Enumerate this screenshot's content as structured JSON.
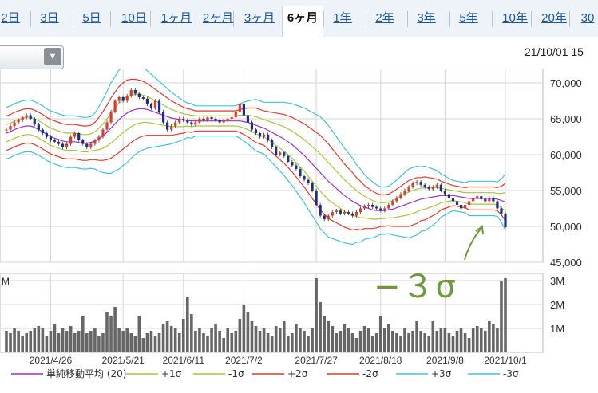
{
  "tabs": [
    {
      "label": "2日",
      "active": false
    },
    {
      "label": "3日",
      "active": false
    },
    {
      "label": "5日",
      "active": false
    },
    {
      "label": "10日",
      "active": false
    },
    {
      "label": "1ヶ月",
      "active": false
    },
    {
      "label": "2ヶ月",
      "active": false
    },
    {
      "label": "3ヶ月",
      "active": false
    },
    {
      "label": "6ヶ月",
      "active": true
    },
    {
      "label": "1年",
      "active": false
    },
    {
      "label": "2年",
      "active": false
    },
    {
      "label": "3年",
      "active": false
    },
    {
      "label": "5年",
      "active": false
    },
    {
      "label": "10年",
      "active": false
    },
    {
      "label": "20年",
      "active": false
    },
    {
      "label": "30",
      "active": false
    }
  ],
  "datetime": "21/10/01 15",
  "annotation": "−３σ",
  "colors": {
    "ma": "#9b30c8",
    "p1": "#a9c43c",
    "m1": "#a9c43c",
    "p2": "#e03a2a",
    "m2": "#e03a2a",
    "p3": "#42c3d8",
    "m3": "#42c3d8",
    "up": "#e03a2a",
    "down": "#1c2e8a",
    "volume": "#666666",
    "annotation": "#6e9b3a"
  },
  "chart_data": {
    "type": "line",
    "price_axis": {
      "ylim": [
        45000,
        72000
      ],
      "ticks": [
        "45,000",
        "50,000",
        "55,000",
        "60,000",
        "65,000",
        "70,000"
      ]
    },
    "volume_axis": {
      "ylim": [
        0,
        3300000
      ],
      "ticks": [
        "1M",
        "2M",
        "3M"
      ],
      "corner_label": "M"
    },
    "x_labels": [
      "2021/4/26",
      "2021/5/21",
      "2021/6/11",
      "2021/7/2",
      "2021/7/27",
      "2021/8/18",
      "2021/9/8",
      "2021/10/1"
    ],
    "x_label_index": [
      11,
      29,
      44,
      59,
      77,
      93,
      109,
      124
    ],
    "legend": [
      {
        "label": "単純移動平均 (20)",
        "key": "ma"
      },
      {
        "label": "+1σ",
        "key": "p1"
      },
      {
        "label": "-1σ",
        "key": "m1"
      },
      {
        "label": "+2σ",
        "key": "p2"
      },
      {
        "label": "-2σ",
        "key": "m2"
      },
      {
        "label": "+3σ",
        "key": "p3"
      },
      {
        "label": "-3σ",
        "key": "m3"
      }
    ],
    "close": [
      63500,
      64000,
      64500,
      64800,
      65200,
      65500,
      65000,
      64200,
      63500,
      63000,
      62500,
      62000,
      61800,
      61500,
      61000,
      61500,
      62500,
      63000,
      62000,
      61500,
      61000,
      61500,
      62000,
      62500,
      63500,
      64500,
      66000,
      67500,
      68000,
      67500,
      68200,
      69000,
      68500,
      68000,
      67800,
      67000,
      66500,
      67500,
      66000,
      64500,
      63500,
      64000,
      64500,
      65000,
      64800,
      64500,
      64200,
      64500,
      65000,
      64800,
      65200,
      65000,
      64800,
      64500,
      64800,
      65000,
      65200,
      66000,
      67000,
      65500,
      64500,
      63500,
      63000,
      62500,
      62800,
      62000,
      61000,
      60000,
      60300,
      59800,
      59000,
      58500,
      58000,
      57000,
      56500,
      56000,
      55000,
      53000,
      51500,
      51000,
      51500,
      52000,
      52200,
      51800,
      52000,
      51800,
      51500,
      52000,
      52500,
      52800,
      53000,
      52700,
      52500,
      52200,
      52500,
      53000,
      53500,
      54000,
      54500,
      55000,
      55500,
      56000,
      56200,
      55800,
      55500,
      55200,
      55500,
      55800,
      55000,
      54500,
      54000,
      53500,
      53000,
      52500,
      53000,
      53500,
      54000,
      54200,
      53800,
      53500,
      54000,
      53500,
      52500,
      51800,
      49900
    ],
    "volume": [
      0.9,
      0.8,
      1.0,
      0.9,
      0.7,
      0.8,
      0.9,
      1.0,
      1.1,
      1.0,
      0.7,
      0.9,
      1.2,
      0.8,
      1.0,
      0.9,
      1.1,
      0.8,
      0.9,
      1.5,
      0.8,
      0.9,
      1.0,
      0.7,
      0.8,
      1.7,
      1.5,
      1.9,
      1.0,
      0.9,
      1.0,
      0.8,
      0.7,
      1.5,
      0.6,
      0.8,
      0.9,
      0.7,
      0.8,
      1.2,
      1.3,
      1.1,
      1.0,
      0.8,
      1.4,
      2.3,
      1.6,
      0.9,
      1.0,
      0.8,
      0.7,
      1.0,
      1.2,
      0.9,
      0.6,
      1.0,
      0.8,
      0.9,
      1.4,
      2.0,
      1.7,
      1.3,
      1.1,
      0.9,
      1.0,
      0.8,
      0.7,
      1.1,
      1.0,
      1.3,
      0.7,
      0.8,
      1.2,
      1.0,
      0.9,
      0.7,
      1.0,
      3.1,
      2.1,
      1.5,
      1.3,
      1.1,
      0.8,
      0.9,
      1.2,
      1.0,
      0.8,
      0.6,
      0.9,
      1.1,
      1.0,
      0.7,
      0.8,
      1.5,
      1.0,
      1.2,
      0.9,
      0.8,
      0.7,
      1.0,
      0.8,
      0.9,
      1.3,
      0.9,
      0.8,
      0.7,
      1.3,
      0.9,
      1.0,
      1.0,
      0.8,
      0.7,
      0.9,
      1.0,
      0.8,
      0.6,
      1.0,
      1.1,
      1.0,
      0.9,
      1.3,
      1.2,
      1.0,
      3.0,
      3.1
    ],
    "bands": {
      "ma": [
        63000,
        63200,
        63500,
        63700,
        63900,
        64000,
        64000,
        63800,
        63500,
        63200,
        62800,
        62500,
        62300,
        62100,
        61900,
        61800,
        61800,
        61800,
        61700,
        61600,
        61600,
        61700,
        61900,
        62200,
        62600,
        63100,
        63700,
        64300,
        64900,
        65400,
        65800,
        66100,
        66300,
        66400,
        66400,
        66300,
        66100,
        65900,
        65700,
        65500,
        65300,
        65100,
        65000,
        64900,
        64800,
        64800,
        64700,
        64700,
        64700,
        64700,
        64700,
        64700,
        64700,
        64700,
        64700,
        64700,
        64700,
        64700,
        64700,
        64600,
        64500,
        64300,
        64100,
        63900,
        63700,
        63400,
        63100,
        62800,
        62500,
        62200,
        61800,
        61400,
        60900,
        60400,
        59900,
        59300,
        58700,
        58100,
        57500,
        56900,
        56300,
        55800,
        55300,
        54800,
        54300,
        53900,
        53500,
        53200,
        52900,
        52700,
        52500,
        52300,
        52200,
        52200,
        52200,
        52300,
        52400,
        52600,
        52800,
        53000,
        53200,
        53400,
        53600,
        53800,
        53900,
        54000,
        54100,
        54200,
        54300,
        54300,
        54300,
        54300,
        54200,
        54100,
        54000,
        53900,
        53900,
        53900,
        53900,
        53900,
        53900,
        53900,
        53800,
        53600,
        53400
      ],
      "p1": [
        64200,
        64400,
        64700,
        64900,
        65100,
        65200,
        65200,
        65000,
        64700,
        64400,
        64000,
        63700,
        63500,
        63300,
        63100,
        63000,
        63000,
        63000,
        62900,
        62800,
        62800,
        62900,
        63200,
        63700,
        64300,
        65000,
        65800,
        66500,
        67200,
        67700,
        68100,
        68300,
        68400,
        68400,
        68300,
        68100,
        67800,
        67500,
        67200,
        66900,
        66600,
        66300,
        66100,
        65900,
        65700,
        65600,
        65500,
        65400,
        65400,
        65400,
        65400,
        65400,
        65400,
        65400,
        65400,
        65400,
        65400,
        65400,
        65500,
        65500,
        65500,
        65400,
        65300,
        65100,
        64900,
        64700,
        64500,
        64300,
        64100,
        63900,
        63600,
        63300,
        62900,
        62500,
        62100,
        61600,
        61100,
        60600,
        60100,
        59500,
        58900,
        58300,
        57700,
        57100,
        56500,
        56000,
        55500,
        55000,
        54600,
        54200,
        53900,
        53600,
        53400,
        53300,
        53300,
        53400,
        53600,
        53900,
        54200,
        54500,
        54800,
        55000,
        55200,
        55300,
        55400,
        55400,
        55400,
        55400,
        55300,
        55200,
        55100,
        55000,
        54900,
        54800,
        54700,
        54700,
        54700,
        54700,
        54700,
        54700,
        54700,
        54700,
        54600,
        54600,
        54700
      ],
      "m1": [
        61800,
        62000,
        62300,
        62500,
        62700,
        62800,
        62800,
        62600,
        62300,
        62000,
        61600,
        61300,
        61100,
        60900,
        60700,
        60600,
        60600,
        60600,
        60500,
        60400,
        60400,
        60500,
        60600,
        60700,
        60900,
        61200,
        61600,
        62100,
        62600,
        63100,
        63500,
        63900,
        64200,
        64400,
        64500,
        64500,
        64400,
        64300,
        64200,
        64100,
        64000,
        63900,
        63900,
        63900,
        63900,
        64000,
        63900,
        64000,
        64000,
        64000,
        64000,
        64000,
        64000,
        64000,
        64000,
        64000,
        64000,
        64000,
        63900,
        63700,
        63500,
        63200,
        62900,
        62700,
        62500,
        62100,
        61700,
        61300,
        60900,
        60500,
        60000,
        59500,
        58900,
        58300,
        57700,
        57000,
        56300,
        55600,
        54900,
        54300,
        53700,
        53300,
        52900,
        52500,
        52100,
        51800,
        51500,
        51400,
        51200,
        51200,
        51100,
        51000,
        51000,
        51100,
        51100,
        51200,
        51200,
        51300,
        51400,
        51500,
        51600,
        51800,
        52000,
        52300,
        52400,
        52600,
        52800,
        53000,
        53300,
        53400,
        53500,
        53600,
        53500,
        53400,
        53300,
        53100,
        53100,
        53100,
        53100,
        53100,
        53100,
        53100,
        53000,
        52600,
        52100
      ],
      "p2": [
        65400,
        65600,
        65900,
        66100,
        66300,
        66400,
        66400,
        66200,
        65900,
        65600,
        65200,
        64900,
        64700,
        64500,
        64300,
        64200,
        64200,
        64200,
        64100,
        64000,
        64000,
        64100,
        64500,
        65200,
        66000,
        66900,
        67900,
        68700,
        69500,
        70000,
        70400,
        70500,
        70500,
        70400,
        70200,
        69900,
        69500,
        69100,
        68700,
        68300,
        67900,
        67500,
        67200,
        66900,
        66600,
        66400,
        66300,
        66100,
        66100,
        66100,
        66100,
        66100,
        66100,
        66100,
        66100,
        66100,
        66100,
        66100,
        66300,
        66400,
        66500,
        66500,
        66500,
        66300,
        66100,
        66000,
        65900,
        65800,
        65700,
        65600,
        65400,
        65200,
        64900,
        64600,
        64300,
        63900,
        63500,
        63100,
        62700,
        62100,
        61500,
        60800,
        60100,
        59400,
        58700,
        58100,
        57500,
        56800,
        56300,
        55700,
        55300,
        54900,
        54600,
        54400,
        54400,
        54500,
        54800,
        55200,
        55600,
        56000,
        56400,
        56600,
        56800,
        56800,
        56900,
        56800,
        56700,
        56600,
        56300,
        56100,
        55900,
        55700,
        55600,
        55500,
        55400,
        55500,
        55500,
        55500,
        55500,
        55500,
        55500,
        55500,
        55400,
        55600,
        56000
      ],
      "m2": [
        60600,
        60800,
        61100,
        61300,
        61500,
        61600,
        61600,
        61400,
        61100,
        60800,
        60400,
        60100,
        59900,
        59700,
        59500,
        59400,
        59400,
        59400,
        59300,
        59200,
        59200,
        59300,
        59300,
        59200,
        59200,
        59300,
        59500,
        59900,
        60300,
        60800,
        61200,
        61700,
        62100,
        62400,
        62600,
        62700,
        62700,
        62700,
        62700,
        62700,
        62700,
        62700,
        62800,
        62900,
        63000,
        63200,
        63100,
        63300,
        63300,
        63300,
        63300,
        63300,
        63300,
        63300,
        63300,
        63300,
        63300,
        63300,
        63100,
        62800,
        62500,
        62100,
        61700,
        61500,
        61300,
        60800,
        60300,
        59800,
        59300,
        58800,
        58200,
        57600,
        56900,
        56200,
        55500,
        54700,
        53900,
        53100,
        52300,
        51700,
        51100,
        50800,
        50500,
        50200,
        49900,
        49700,
        49500,
        49600,
        49500,
        49700,
        49700,
        49700,
        49800,
        50000,
        50000,
        50100,
        50000,
        50000,
        50000,
        50000,
        50000,
        50200,
        50400,
        50800,
        50900,
        51200,
        51500,
        51800,
        52300,
        52500,
        52700,
        52900,
        52800,
        52700,
        52600,
        52300,
        52300,
        52300,
        52300,
        52300,
        52300,
        52300,
        52200,
        51600,
        50800
      ],
      "p3": [
        66600,
        66800,
        67100,
        67300,
        67500,
        67600,
        67600,
        67400,
        67100,
        66800,
        66400,
        66100,
        65900,
        65700,
        65500,
        65400,
        65400,
        65400,
        65300,
        65200,
        65200,
        65300,
        65800,
        66700,
        67700,
        68800,
        70000,
        70900,
        71800,
        72300,
        72700,
        72700,
        72600,
        72400,
        72100,
        71700,
        71200,
        70700,
        70200,
        69700,
        69200,
        68700,
        68300,
        67900,
        67500,
        67200,
        67100,
        66800,
        66800,
        66800,
        66800,
        66800,
        66800,
        66800,
        66800,
        66800,
        66800,
        66800,
        67100,
        67300,
        67500,
        67600,
        67700,
        67500,
        67300,
        67300,
        67300,
        67300,
        67300,
        67300,
        67200,
        67100,
        66900,
        66700,
        66500,
        66200,
        65900,
        65600,
        65300,
        64700,
        64100,
        63300,
        62500,
        61700,
        60900,
        60200,
        59500,
        58600,
        58000,
        57200,
        56700,
        56200,
        55800,
        55500,
        55500,
        55600,
        56000,
        56500,
        57000,
        57500,
        58000,
        58200,
        58400,
        58300,
        58400,
        58200,
        58000,
        57800,
        57300,
        57000,
        56700,
        56400,
        56300,
        56200,
        56100,
        56300,
        56300,
        56300,
        56300,
        56300,
        56300,
        56300,
        56200,
        56600,
        57300
      ],
      "m3": [
        59400,
        59600,
        59900,
        60100,
        60300,
        60400,
        60400,
        60200,
        59900,
        59600,
        59200,
        58900,
        58700,
        58500,
        58300,
        58200,
        58200,
        58200,
        58100,
        58000,
        58000,
        58100,
        58000,
        57700,
        57500,
        57400,
        57400,
        57700,
        58000,
        58500,
        58900,
        59500,
        60000,
        60400,
        60700,
        60900,
        61000,
        61100,
        61200,
        61300,
        61400,
        61500,
        61700,
        61900,
        62100,
        62400,
        62300,
        62600,
        62600,
        62600,
        62600,
        62600,
        62600,
        62600,
        62600,
        62600,
        62600,
        62600,
        62300,
        61900,
        61500,
        61000,
        60500,
        60300,
        60100,
        59500,
        58900,
        58300,
        57700,
        57100,
        56400,
        55700,
        54900,
        54100,
        53300,
        52400,
        51500,
        50600,
        49700,
        49100,
        48500,
        48300,
        48100,
        47900,
        47700,
        47600,
        47500,
        47800,
        47800,
        48200,
        48300,
        48400,
        48600,
        48900,
        48900,
        49000,
        48800,
        48700,
        48600,
        48500,
        48400,
        48600,
        48800,
        49300,
        49400,
        49800,
        50200,
        50600,
        51300,
        51600,
        51900,
        52200,
        52100,
        52000,
        51900,
        51500,
        51500,
        51500,
        51500,
        51500,
        51500,
        51500,
        51400,
        50600,
        49500
      ]
    }
  }
}
